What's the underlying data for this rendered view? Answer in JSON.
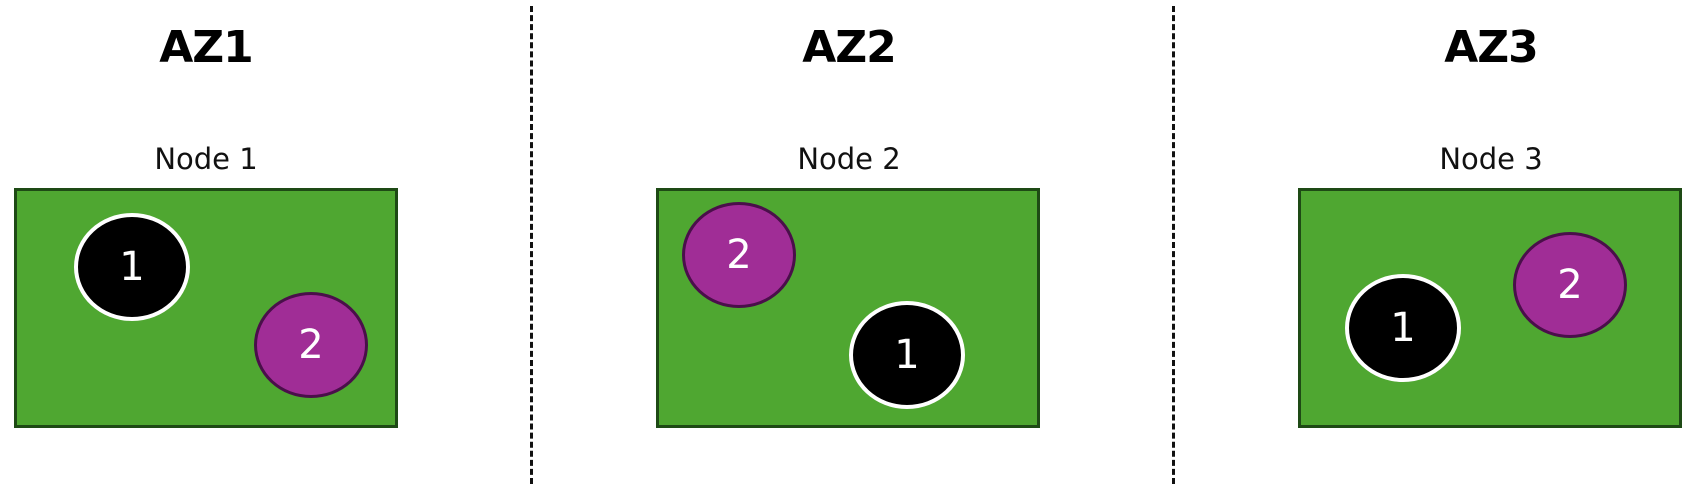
{
  "colors": {
    "node_fill": "#4fa731",
    "node_border": "#1e4a15",
    "pod_1_fill": "#000000",
    "pod_2_fill": "#a02d96",
    "divider": "#111111"
  },
  "zones": [
    {
      "title": "AZ1",
      "node_label": "Node 1",
      "pods": [
        {
          "label": "1"
        },
        {
          "label": "2"
        }
      ]
    },
    {
      "title": "AZ2",
      "node_label": "Node 2",
      "pods": [
        {
          "label": "2"
        },
        {
          "label": "1"
        }
      ]
    },
    {
      "title": "AZ3",
      "node_label": "Node 3",
      "pods": [
        {
          "label": "1"
        },
        {
          "label": "2"
        }
      ]
    }
  ]
}
